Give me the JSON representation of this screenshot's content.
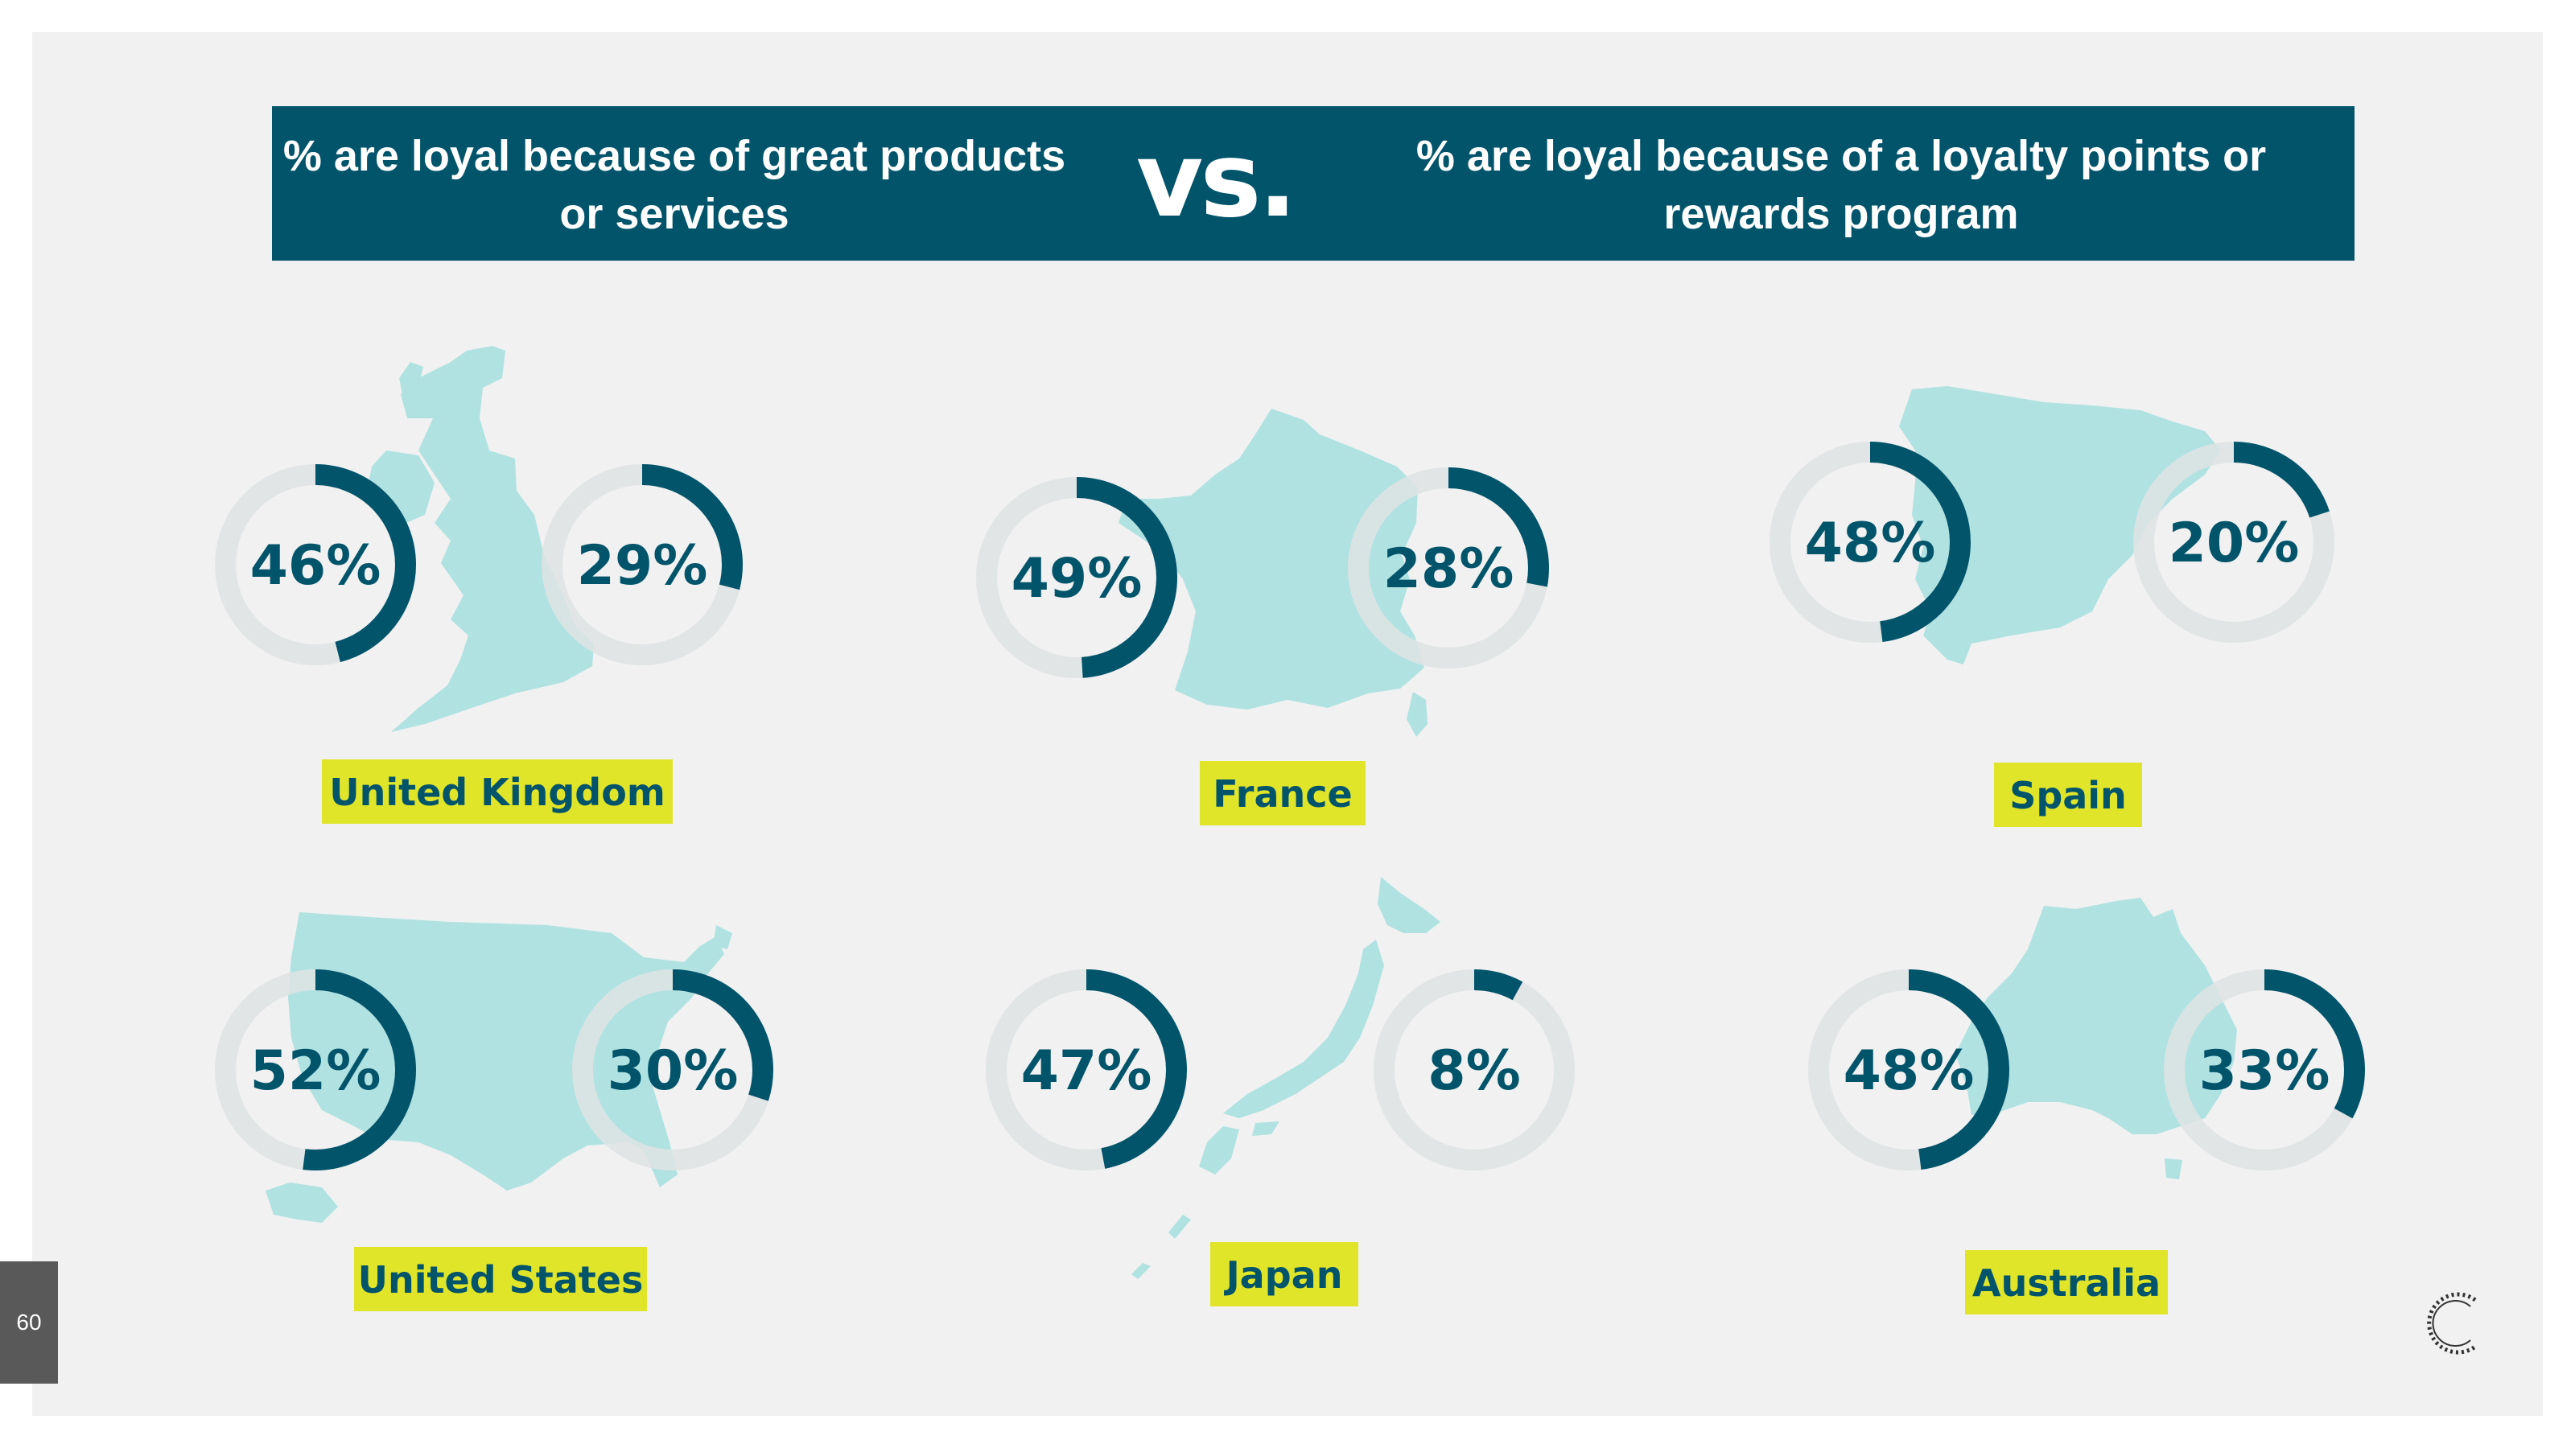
{
  "header": {
    "left_text": "% are loyal because of great products or services",
    "vs": "vs.",
    "right_text": "% are loyal because of a loyalty points or rewards program"
  },
  "page_number": "60",
  "colors": {
    "primary": "#02546b",
    "track": "#dfe3e4",
    "map": "#b0e2e2",
    "label_bg": "#e0e52a",
    "background": "#f0f1f0"
  },
  "chart_data": {
    "type": "donut",
    "series": [
      {
        "name": "% are loyal because of great products or services"
      },
      {
        "name": "% are loyal because of a loyalty points or rewards program"
      }
    ],
    "countries": [
      {
        "name": "United Kingdom",
        "products": 46,
        "rewards": 29
      },
      {
        "name": "France",
        "products": 49,
        "rewards": 28
      },
      {
        "name": "Spain",
        "products": 48,
        "rewards": 20
      },
      {
        "name": "United States",
        "products": 52,
        "rewards": 30
      },
      {
        "name": "Japan",
        "products": 47,
        "rewards": 8
      },
      {
        "name": "Australia",
        "products": 48,
        "rewards": 33
      }
    ],
    "unit": "%"
  }
}
